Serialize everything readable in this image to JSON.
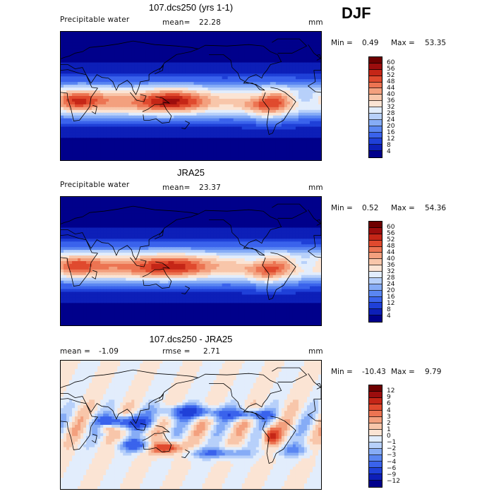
{
  "season": "DJF",
  "panels": [
    {
      "title": "107.dcs250 (yrs 1-1)",
      "left_label": "Precipitable water",
      "mean_label": "mean=",
      "mean_value": "22.28",
      "rmse_label": "",
      "rmse_value": "",
      "units": "mm",
      "min_label": "Min =",
      "min_value": "0.49",
      "max_label": "Max =",
      "max_value": "53.35",
      "colorbar_labels": [
        "60",
        "56",
        "52",
        "48",
        "44",
        "40",
        "36",
        "32",
        "28",
        "24",
        "20",
        "16",
        "12",
        "8",
        "4"
      ],
      "colors": [
        "#00008b",
        "#0d1fb8",
        "#1f40d8",
        "#3a63ec",
        "#5a86f2",
        "#86acf6",
        "#b7d0fa",
        "#e2edfc",
        "#fbe4d4",
        "#f8c6aa",
        "#f3a07e",
        "#ec7452",
        "#e04a2e",
        "#c52617",
        "#9c0d0d",
        "#6e0000"
      ]
    },
    {
      "title": "JRA25",
      "left_label": "Precipitable water",
      "mean_label": "mean=",
      "mean_value": "23.37",
      "rmse_label": "",
      "rmse_value": "",
      "units": "mm",
      "min_label": "Min =",
      "min_value": "0.52",
      "max_label": "Max =",
      "max_value": "54.36",
      "colorbar_labels": [
        "60",
        "56",
        "52",
        "48",
        "44",
        "40",
        "36",
        "32",
        "28",
        "24",
        "20",
        "16",
        "12",
        "8",
        "4"
      ],
      "colors": [
        "#00008b",
        "#0d1fb8",
        "#1f40d8",
        "#3a63ec",
        "#5a86f2",
        "#86acf6",
        "#b7d0fa",
        "#e2edfc",
        "#fbe4d4",
        "#f8c6aa",
        "#f3a07e",
        "#ec7452",
        "#e04a2e",
        "#c52617",
        "#9c0d0d",
        "#6e0000"
      ]
    },
    {
      "title": "107.dcs250 - JRA25",
      "left_label": "",
      "mean_label": "mean =",
      "mean_value": "-1.09",
      "rmse_label": "rmse =",
      "rmse_value": "2.71",
      "units": "mm",
      "min_label": "Min =",
      "min_value": "-10.43",
      "max_label": "Max =",
      "max_value": "9.79",
      "colorbar_labels": [
        "12",
        "9",
        "6",
        "4",
        "3",
        "2",
        "1",
        "0",
        "−1",
        "−2",
        "−3",
        "−4",
        "−6",
        "−9",
        "−12"
      ],
      "colors": [
        "#00008b",
        "#0d1fb8",
        "#1f40d8",
        "#3a63ec",
        "#5a86f2",
        "#86acf6",
        "#b7d0fa",
        "#e2edfc",
        "#fbe4d4",
        "#f8c6aa",
        "#f3a07e",
        "#ec7452",
        "#e04a2e",
        "#c52617",
        "#9c0d0d",
        "#6e0000"
      ]
    }
  ]
}
